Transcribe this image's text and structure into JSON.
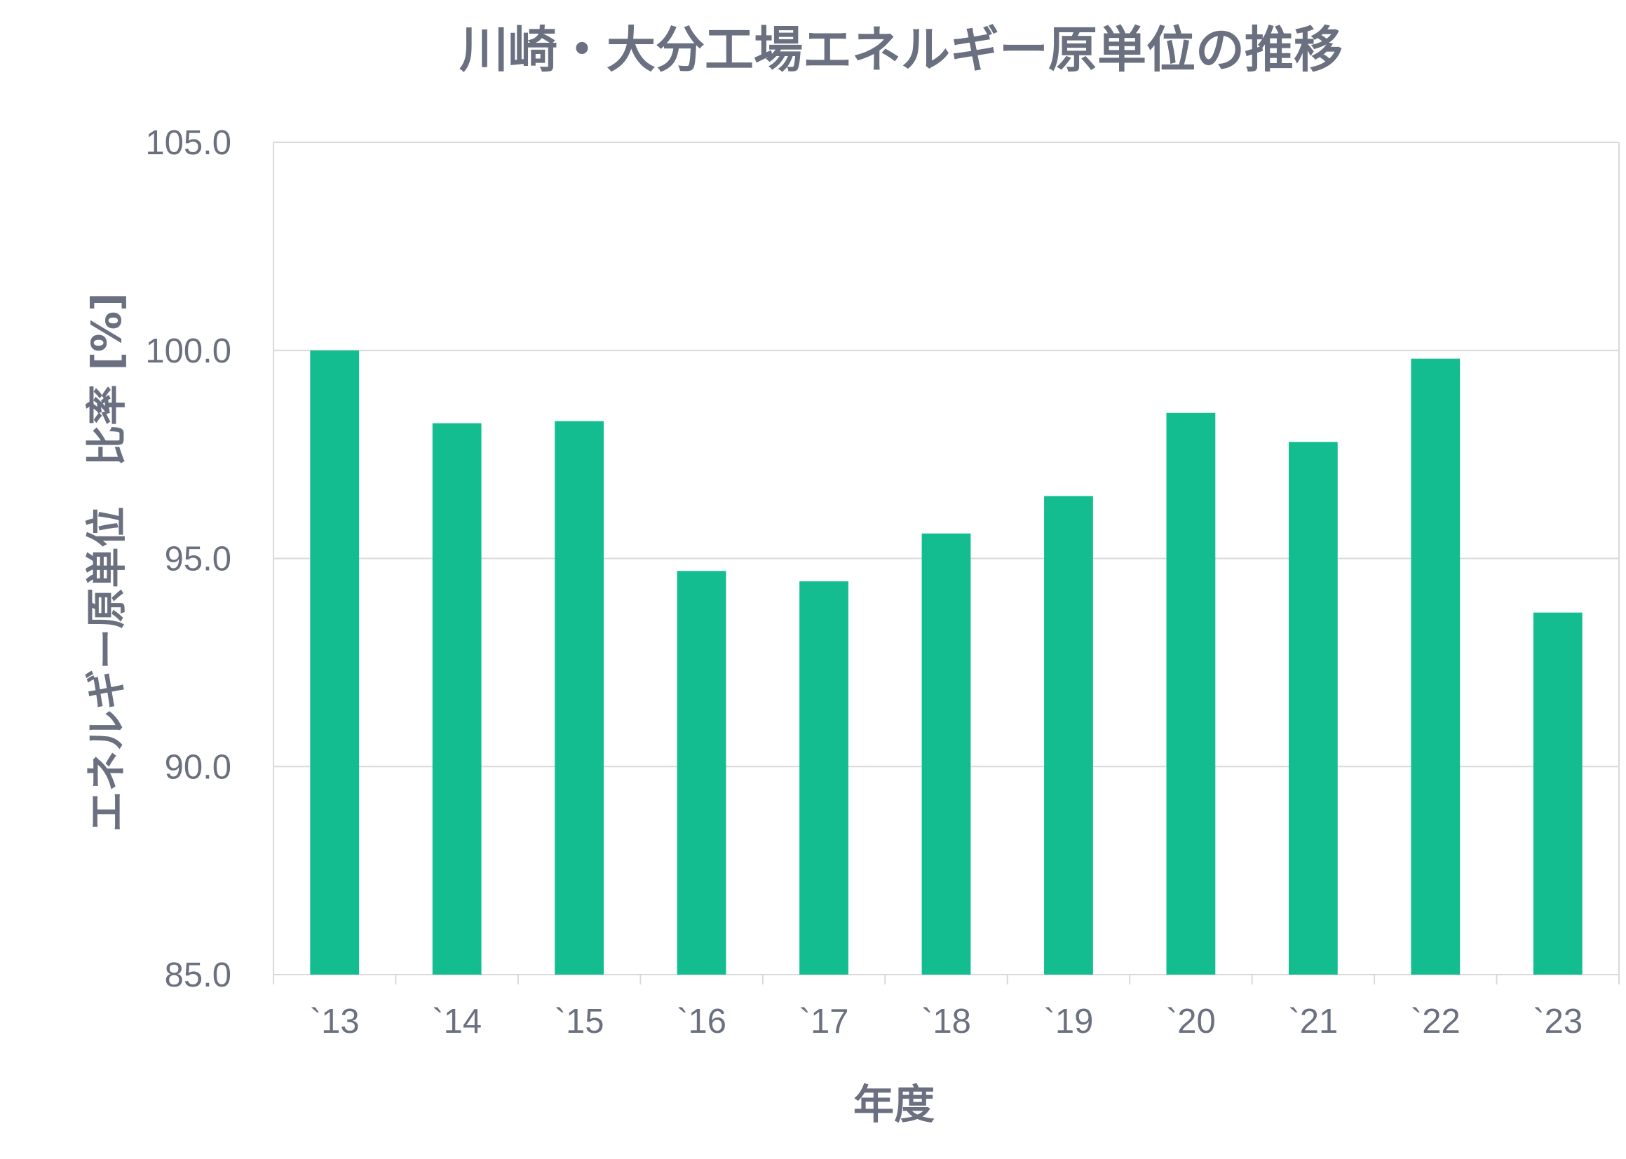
{
  "chart_data": {
    "type": "bar",
    "title": "川崎・大分工場エネルギー原単位の推移",
    "xlabel": "年度",
    "ylabel": "エネルギー原単位　比率 [%]",
    "categories": [
      "`13",
      "`14",
      "`15",
      "`16",
      "`17",
      "`18",
      "`19",
      "`20",
      "`21",
      "`22",
      "`23"
    ],
    "values": [
      100.0,
      98.25,
      98.3,
      94.7,
      94.45,
      95.6,
      96.5,
      98.5,
      97.8,
      99.8,
      93.7
    ],
    "ylim": [
      85.0,
      105.0
    ],
    "yticks": [
      "85.0",
      "90.0",
      "95.0",
      "100.0",
      "105.0"
    ],
    "ytick_values": [
      85,
      90,
      95,
      100,
      105
    ],
    "grid": true,
    "legend": "none",
    "bar_color": "#13bd8f",
    "text_color": "#6b7080",
    "grid_color": "#d9d9d9"
  }
}
